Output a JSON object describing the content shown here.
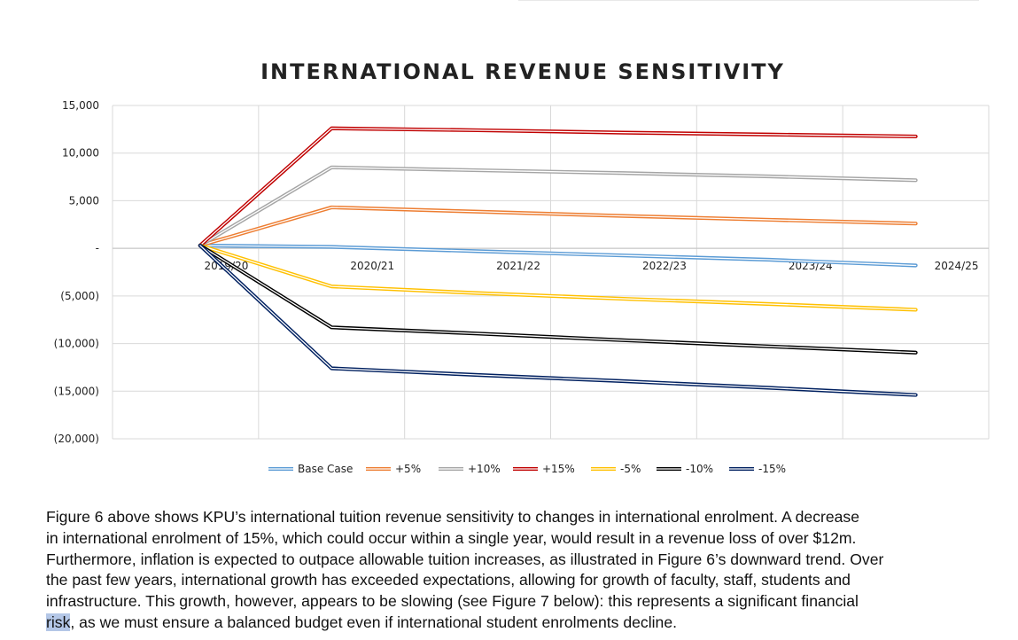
{
  "chart_data": {
    "type": "line",
    "title": "INTERNATIONAL REVENUE SENSITIVITY",
    "categories": [
      "2019/20",
      "2020/21",
      "2021/22",
      "2022/23",
      "2023/24",
      "2024/25"
    ],
    "y_ticks": [
      {
        "value": 15000,
        "label": "15,000"
      },
      {
        "value": 10000,
        "label": "10,000"
      },
      {
        "value": 5000,
        "label": "5,000"
      },
      {
        "value": 0,
        "label": "-"
      },
      {
        "value": -5000,
        "label": "(5,000)"
      },
      {
        "value": -10000,
        "label": "(10,000)"
      },
      {
        "value": -15000,
        "label": "(15,000)"
      },
      {
        "value": -20000,
        "label": "(20,000)"
      }
    ],
    "ylim": [
      -20000,
      15000
    ],
    "legend_position": "bottom",
    "series": [
      {
        "name": "Base Case",
        "color": "#5b9bd5",
        "x": [
          0.1,
          1,
          2,
          3,
          4,
          5
        ],
        "values": [
          300,
          150,
          -300,
          -750,
          -1200,
          -1800
        ]
      },
      {
        "name": "+5%",
        "color": "#ed7d31",
        "x": [
          0.1,
          1,
          2,
          3,
          4,
          5
        ],
        "values": [
          300,
          4300,
          3850,
          3400,
          3000,
          2600
        ]
      },
      {
        "name": "+10%",
        "color": "#a5a5a5",
        "x": [
          0.1,
          1,
          2,
          3,
          4,
          5
        ],
        "values": [
          300,
          8500,
          8200,
          7900,
          7550,
          7150
        ]
      },
      {
        "name": "+15%",
        "color": "#c00000",
        "x": [
          0.1,
          1,
          2,
          3,
          4,
          5
        ],
        "values": [
          300,
          12600,
          12400,
          12150,
          11950,
          11750
        ]
      },
      {
        "name": "-5%",
        "color": "#ffc000",
        "x": [
          0.1,
          1,
          2,
          3,
          4,
          5
        ],
        "values": [
          300,
          -4000,
          -4700,
          -5300,
          -5850,
          -6450
        ]
      },
      {
        "name": "-10%",
        "color": "#000000",
        "x": [
          0.1,
          1,
          2,
          3,
          4,
          5
        ],
        "values": [
          300,
          -8300,
          -8950,
          -9650,
          -10300,
          -10950
        ]
      },
      {
        "name": "-15%",
        "color": "#002060",
        "x": [
          0.1,
          1,
          2,
          3,
          4,
          5
        ],
        "values": [
          300,
          -12600,
          -13300,
          -13950,
          -14650,
          -15400
        ]
      }
    ]
  },
  "paragraph": {
    "lines": [
      "Figure 6 above shows KPU’s international tuition revenue sensitivity to changes in international enrolment.  A decrease",
      "in international enrolment of 15%, which could occur within a single year, would result in a revenue loss of over $12m.",
      "Furthermore, inflation is expected to outpace allowable tuition increases, as illustrated in Figure 6’s downward trend. Over",
      "the past few years, international growth has exceeded expectations, allowing for growth of faculty, staff, students and",
      "infrastructure.  This growth, however, appears to be slowing (see Figure 7 below): this represents a significant financial"
    ],
    "last_line_highlight": "risk",
    "last_line_rest": ", as we must ensure a balanced budget even if international student enrolments decline."
  }
}
